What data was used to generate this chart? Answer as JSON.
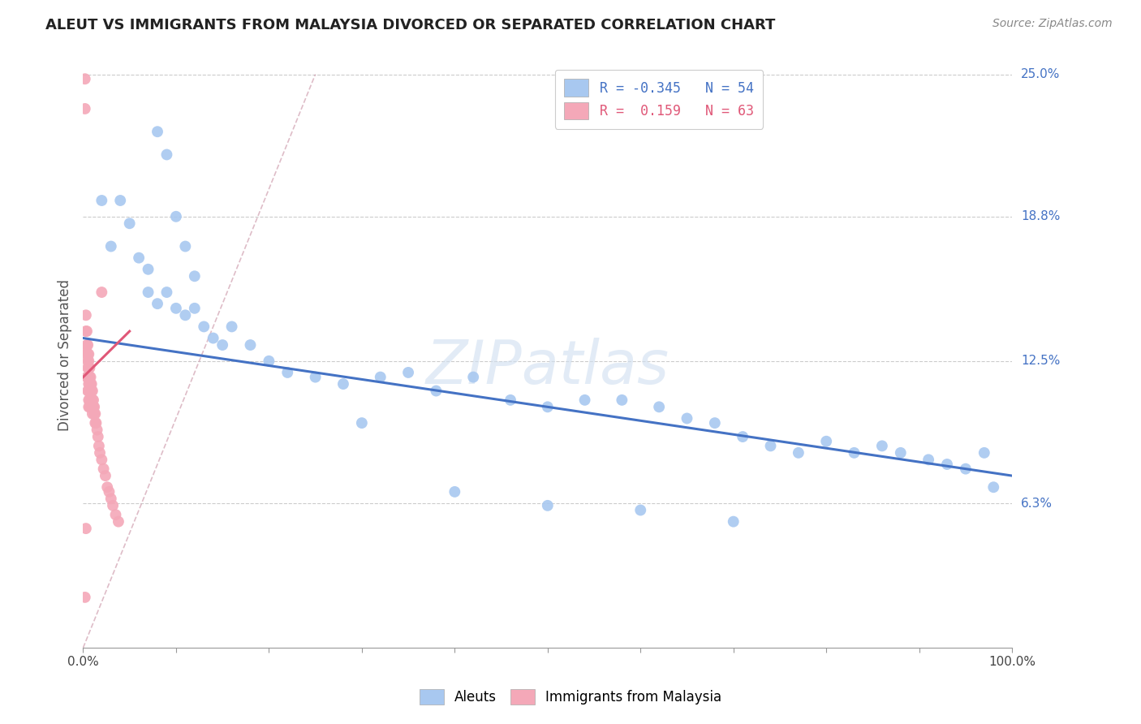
{
  "title": "ALEUT VS IMMIGRANTS FROM MALAYSIA DIVORCED OR SEPARATED CORRELATION CHART",
  "source": "Source: ZipAtlas.com",
  "ylabel": "Divorced or Separated",
  "xmin": 0.0,
  "xmax": 1.0,
  "ymin": 0.0,
  "ymax": 0.25,
  "xtick_positions": [
    0.0,
    0.1,
    0.2,
    0.3,
    0.4,
    0.5,
    0.6,
    0.7,
    0.8,
    0.9,
    1.0
  ],
  "xtick_labels_show": [
    "0.0%",
    "",
    "",
    "",
    "",
    "",
    "",
    "",
    "",
    "",
    "100.0%"
  ],
  "ytick_values": [
    0.063,
    0.125,
    0.188,
    0.25
  ],
  "ytick_labels": [
    "6.3%",
    "12.5%",
    "18.8%",
    "25.0%"
  ],
  "watermark": "ZIPatlas",
  "aleut_color": "#a8c8f0",
  "malaysia_color": "#f4a8b8",
  "aleut_line_color": "#4472c4",
  "malaysia_line_color": "#e05878",
  "refline_color": "#d0a0b0",
  "aleut_points_x": [
    0.02,
    0.03,
    0.04,
    0.05,
    0.06,
    0.07,
    0.07,
    0.08,
    0.09,
    0.1,
    0.11,
    0.12,
    0.13,
    0.14,
    0.15,
    0.16,
    0.18,
    0.2,
    0.22,
    0.25,
    0.28,
    0.32,
    0.35,
    0.38,
    0.42,
    0.46,
    0.5,
    0.54,
    0.58,
    0.62,
    0.65,
    0.68,
    0.71,
    0.74,
    0.77,
    0.8,
    0.83,
    0.86,
    0.88,
    0.91,
    0.93,
    0.95,
    0.97,
    0.98,
    0.08,
    0.09,
    0.1,
    0.11,
    0.12,
    0.3,
    0.4,
    0.5,
    0.6,
    0.7
  ],
  "aleut_points_y": [
    0.195,
    0.175,
    0.195,
    0.185,
    0.17,
    0.165,
    0.155,
    0.15,
    0.155,
    0.148,
    0.145,
    0.148,
    0.14,
    0.135,
    0.132,
    0.14,
    0.132,
    0.125,
    0.12,
    0.118,
    0.115,
    0.118,
    0.12,
    0.112,
    0.118,
    0.108,
    0.105,
    0.108,
    0.108,
    0.105,
    0.1,
    0.098,
    0.092,
    0.088,
    0.085,
    0.09,
    0.085,
    0.088,
    0.085,
    0.082,
    0.08,
    0.078,
    0.085,
    0.07,
    0.225,
    0.215,
    0.188,
    0.175,
    0.162,
    0.098,
    0.068,
    0.062,
    0.06,
    0.055
  ],
  "malaysia_points_x": [
    0.002,
    0.002,
    0.003,
    0.003,
    0.003,
    0.004,
    0.004,
    0.004,
    0.004,
    0.005,
    0.005,
    0.005,
    0.005,
    0.005,
    0.005,
    0.006,
    0.006,
    0.006,
    0.006,
    0.006,
    0.006,
    0.006,
    0.006,
    0.007,
    0.007,
    0.007,
    0.007,
    0.007,
    0.007,
    0.008,
    0.008,
    0.008,
    0.008,
    0.009,
    0.009,
    0.009,
    0.009,
    0.01,
    0.01,
    0.01,
    0.01,
    0.011,
    0.011,
    0.012,
    0.012,
    0.013,
    0.013,
    0.014,
    0.015,
    0.016,
    0.017,
    0.018,
    0.02,
    0.022,
    0.024,
    0.026,
    0.028,
    0.03,
    0.032,
    0.035,
    0.038,
    0.003,
    0.002,
    0.02
  ],
  "malaysia_points_y": [
    0.248,
    0.235,
    0.145,
    0.138,
    0.13,
    0.138,
    0.132,
    0.128,
    0.118,
    0.132,
    0.128,
    0.125,
    0.122,
    0.118,
    0.112,
    0.128,
    0.125,
    0.122,
    0.118,
    0.115,
    0.112,
    0.108,
    0.105,
    0.122,
    0.118,
    0.115,
    0.112,
    0.108,
    0.105,
    0.118,
    0.115,
    0.112,
    0.108,
    0.115,
    0.112,
    0.108,
    0.105,
    0.112,
    0.108,
    0.105,
    0.102,
    0.108,
    0.105,
    0.105,
    0.102,
    0.102,
    0.098,
    0.098,
    0.095,
    0.092,
    0.088,
    0.085,
    0.082,
    0.078,
    0.075,
    0.07,
    0.068,
    0.065,
    0.062,
    0.058,
    0.055,
    0.052,
    0.022,
    0.155
  ],
  "aleut_trendline_x": [
    0.0,
    1.0
  ],
  "aleut_trendline_y": [
    0.135,
    0.075
  ],
  "malaysia_trendline_x": [
    0.0,
    0.05
  ],
  "malaysia_trendline_y": [
    0.118,
    0.138
  ],
  "refline_x": [
    0.0,
    0.25
  ],
  "refline_y": [
    0.0,
    0.25
  ]
}
